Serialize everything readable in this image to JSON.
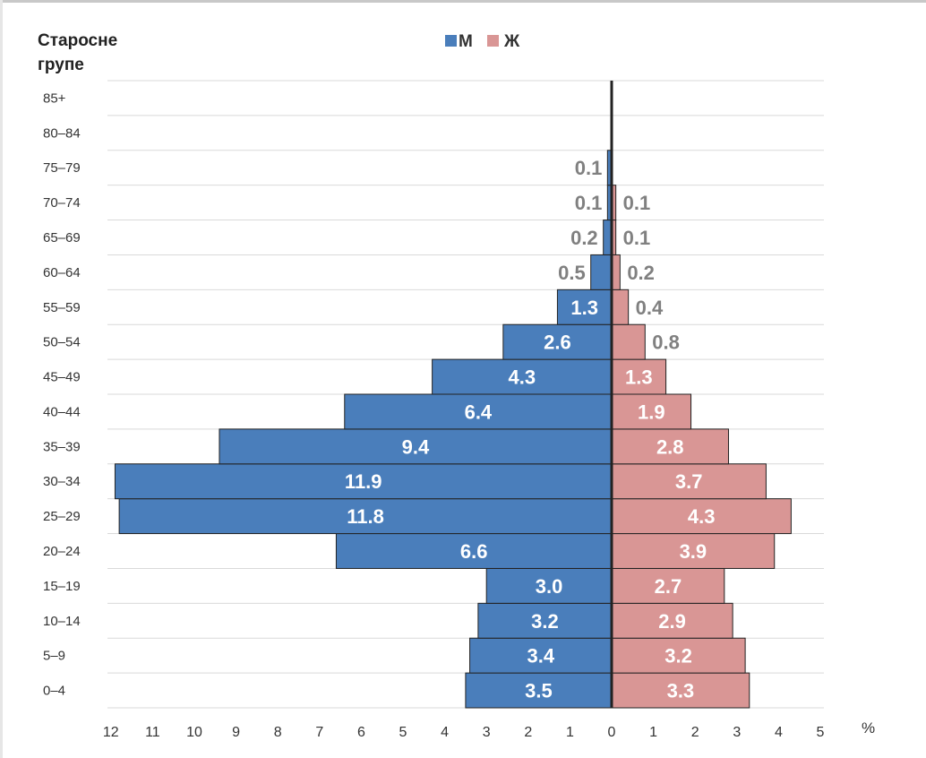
{
  "chart_data": {
    "type": "bar",
    "orientation": "horizontal",
    "layout": "population-pyramid",
    "ytitle_lines": [
      "Старосне",
      "групе"
    ],
    "unit_label": "%",
    "categories": [
      "0–4",
      "5–9",
      "10–14",
      "15–19",
      "20–24",
      "25–29",
      "30–34",
      "35–39",
      "40–44",
      "45–49",
      "50–54",
      "55–59",
      "60–64",
      "65–69",
      "70–74",
      "75–79",
      "80–84",
      "85+"
    ],
    "series": [
      {
        "name": "М",
        "side": "left",
        "color": "#4a7ebb",
        "values": [
          3.5,
          3.4,
          3.2,
          3.0,
          6.6,
          11.8,
          11.9,
          9.4,
          6.4,
          4.3,
          2.6,
          1.3,
          0.5,
          0.2,
          0.1,
          0.1,
          0.0,
          0.0
        ],
        "labels": [
          "3.5",
          "3.4",
          "3.2",
          "3.0",
          "6.6",
          "11.8",
          "11.9",
          "9.4",
          "6.4",
          "4.3",
          "2.6",
          "1.3",
          "0.5",
          "0.2",
          "0.1",
          "0.1",
          "",
          ""
        ]
      },
      {
        "name": "Ж",
        "side": "right",
        "color": "#d99695",
        "values": [
          3.3,
          3.2,
          2.9,
          2.7,
          3.9,
          4.3,
          3.7,
          2.8,
          1.9,
          1.3,
          0.8,
          0.4,
          0.2,
          0.1,
          0.1,
          0.0,
          0.0,
          0.0
        ],
        "labels": [
          "3.3",
          "3.2",
          "2.9",
          "2.7",
          "3.9",
          "4.3",
          "3.7",
          "2.8",
          "1.9",
          "1.3",
          "0.8",
          "0.4",
          "0.2",
          "0.1",
          "0.1",
          "",
          "",
          ""
        ]
      }
    ],
    "x_ticks_left": [
      "12",
      "11",
      "10",
      "9",
      "8",
      "7",
      "6",
      "5",
      "4",
      "3",
      "2",
      "1"
    ],
    "x_ticks_right": [
      "0",
      "1",
      "2",
      "3",
      "4",
      "5"
    ],
    "xlim_left": 12,
    "xlim_right": 5,
    "grid": "horizontal",
    "legend_position": "top-center",
    "axis_line_color": "#222222",
    "grid_color": "#d9d9d9"
  }
}
